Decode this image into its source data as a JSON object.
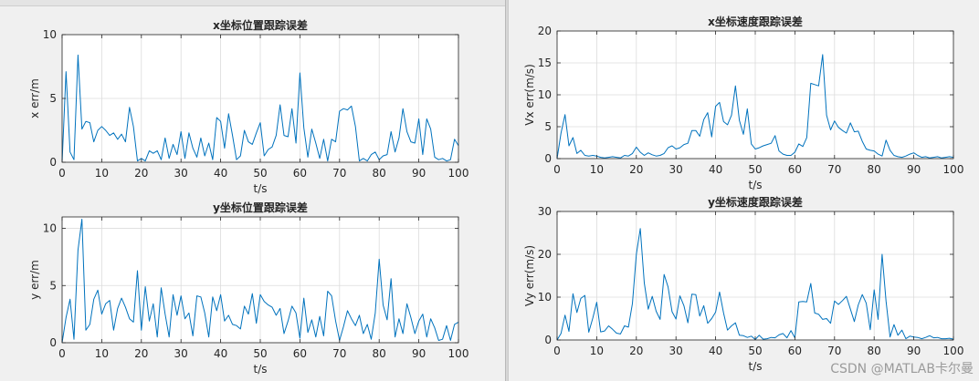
{
  "watermark": "CSDN @MATLAB卡尔曼",
  "colors": {
    "line": "#0072bd",
    "grid": "#dcdcdc",
    "axis": "#262626",
    "bg": "#ffffff"
  },
  "chart_data": [
    {
      "id": "x-pos",
      "type": "line",
      "title": "x坐标位置跟踪误差",
      "xlabel": "t/s",
      "ylabel": "x err/m",
      "xlim": [
        0,
        100
      ],
      "ylim": [
        0,
        10
      ],
      "xticks": [
        0,
        10,
        20,
        30,
        40,
        50,
        60,
        70,
        80,
        90,
        100
      ],
      "yticks": [
        0,
        5,
        10
      ],
      "grid": true,
      "y": [
        0,
        7.1,
        0.8,
        0.2,
        8.4,
        2.6,
        3.2,
        3.1,
        1.6,
        2.5,
        2.8,
        2.5,
        2.1,
        2.3,
        1.8,
        2.2,
        1.6,
        4.3,
        2.8,
        0.1,
        0.3,
        0.1,
        0.9,
        0.7,
        0.9,
        0.2,
        1.9,
        0.3,
        1.4,
        0.6,
        2.4,
        0.3,
        2.3,
        1.1,
        0.4,
        1.9,
        0.5,
        1.5,
        0.2,
        3.5,
        3.2,
        1.1,
        3.8,
        2.1,
        0.2,
        0.5,
        2.5,
        1.6,
        1.4,
        2.3,
        3.1,
        0.5,
        1.0,
        1.2,
        2.1,
        4.5,
        2.1,
        2.0,
        4.2,
        1.5,
        7.0,
        2.7,
        0.4,
        2.6,
        1.5,
        0.3,
        1.8,
        0.1,
        1.8,
        1.6,
        4.0,
        4.2,
        4.1,
        4.4,
        2.8,
        0.1,
        0.3,
        0.1,
        0.6,
        0.8,
        0.2,
        0.5,
        0.6,
        2.4,
        0.8,
        1.9,
        4.2,
        2.4,
        1.6,
        1.5,
        3.4,
        0.6,
        3.4,
        2.6,
        0.4,
        0.2,
        0.3,
        0.1,
        0.2,
        1.8,
        1.3
      ]
    },
    {
      "id": "y-pos",
      "type": "line",
      "title": "y坐标位置跟踪误差",
      "xlabel": "t/s",
      "ylabel": "y err/m",
      "xlim": [
        0,
        100
      ],
      "ylim": [
        0,
        11
      ],
      "xticks": [
        0,
        10,
        20,
        30,
        40,
        50,
        60,
        70,
        80,
        90,
        100
      ],
      "yticks": [
        0,
        5,
        10
      ],
      "grid": true,
      "y": [
        0,
        2.2,
        3.8,
        0.3,
        8.1,
        10.8,
        1.1,
        1.6,
        3.8,
        4.6,
        2.5,
        3.4,
        3.7,
        1.1,
        3.0,
        3.9,
        3.1,
        2.1,
        1.8,
        6.3,
        1.1,
        4.9,
        1.9,
        3.4,
        0.5,
        4.8,
        2.5,
        0.5,
        4.2,
        2.4,
        4.1,
        2.1,
        2.6,
        0.6,
        4.1,
        4.0,
        2.6,
        0.5,
        4.0,
        2.8,
        4.2,
        1.9,
        2.4,
        1.6,
        1.5,
        1.2,
        3.2,
        2.5,
        4.3,
        1.7,
        4.2,
        3.6,
        3.3,
        3.1,
        2.4,
        3.0,
        0.8,
        1.9,
        3.2,
        2.6,
        0.4,
        3.9,
        0.9,
        2.0,
        0.5,
        2.3,
        0.6,
        4.5,
        4.1,
        1.9,
        0.2,
        1.4,
        2.8,
        2.1,
        1.5,
        2.4,
        0.8,
        1.6,
        0.3,
        2.6,
        7.3,
        3.3,
        2.0,
        5.6,
        0.5,
        2.1,
        0.8,
        3.4,
        2.2,
        0.8,
        1.9,
        2.5,
        0.5,
        2.1,
        1.3,
        0.2,
        0.3,
        1.5,
        0.2,
        1.6,
        1.8
      ]
    },
    {
      "id": "x-vel",
      "type": "line",
      "title": "x坐标速度跟踪误差",
      "xlabel": "t/s",
      "ylabel": "Vx err(m/s)",
      "xlim": [
        0,
        100
      ],
      "ylim": [
        0,
        20
      ],
      "xticks": [
        0,
        10,
        20,
        30,
        40,
        50,
        60,
        70,
        80,
        90,
        100
      ],
      "yticks": [
        0,
        5,
        10,
        15,
        20
      ],
      "grid": true,
      "y": [
        0,
        4.0,
        6.9,
        2.0,
        3.3,
        0.8,
        1.3,
        0.5,
        0.4,
        0.5,
        0.4,
        0.2,
        0.1,
        0.2,
        0.3,
        0.2,
        0.1,
        0.5,
        0.4,
        0.8,
        1.8,
        1.0,
        0.5,
        0.9,
        0.6,
        0.4,
        0.5,
        0.8,
        1.7,
        2.0,
        1.5,
        1.7,
        2.2,
        2.4,
        4.4,
        4.4,
        3.5,
        6.1,
        7.2,
        3.4,
        8.2,
        8.8,
        5.8,
        5.3,
        6.8,
        11.4,
        6.0,
        3.8,
        7.8,
        2.3,
        1.5,
        1.7,
        2.0,
        2.2,
        2.4,
        3.6,
        1.2,
        0.7,
        0.5,
        0.5,
        1.0,
        2.3,
        1.9,
        3.3,
        11.8,
        11.6,
        11.4,
        16.3,
        6.8,
        4.5,
        5.9,
        4.9,
        4.4,
        4.0,
        5.6,
        4.2,
        4.3,
        2.7,
        1.5,
        1.3,
        1.2,
        0.7,
        0.4,
        2.9,
        1.3,
        0.5,
        0.3,
        0.2,
        0.4,
        0.7,
        0.9,
        0.5,
        0.2,
        0.3,
        0.1,
        0.2,
        0.3,
        0.1,
        0.2,
        0.3,
        0.2
      ]
    },
    {
      "id": "y-vel",
      "type": "line",
      "title": "y坐标速度跟踪误差",
      "xlabel": "t/s",
      "ylabel": "Vy err(m/s)",
      "xlim": [
        0,
        100
      ],
      "ylim": [
        0,
        30
      ],
      "xticks": [
        0,
        10,
        20,
        30,
        40,
        50,
        60,
        70,
        80,
        90,
        100
      ],
      "yticks": [
        0,
        10,
        20,
        30
      ],
      "grid": true,
      "y": [
        0,
        1.5,
        5.8,
        2.0,
        10.8,
        6.4,
        9.7,
        10.4,
        1.8,
        5.1,
        8.8,
        1.9,
        2.1,
        3.3,
        2.5,
        1.6,
        1.4,
        3.3,
        3.0,
        8.5,
        20.0,
        26.0,
        13.3,
        7.2,
        10.2,
        6.7,
        4.8,
        15.3,
        12.4,
        6.6,
        4.9,
        10.3,
        8.0,
        4.0,
        10.7,
        10.6,
        5.6,
        8.0,
        3.9,
        5.0,
        6.5,
        11.2,
        6.3,
        2.3,
        3.3,
        4.0,
        1.1,
        1.0,
        0.6,
        0.9,
        0.1,
        1.1,
        0.2,
        0.3,
        0.6,
        0.5,
        1.2,
        1.5,
        0.5,
        2.2,
        0.5,
        8.9,
        9.0,
        8.9,
        13.2,
        6.3,
        6.0,
        4.8,
        5.0,
        3.9,
        9.1,
        8.3,
        9.2,
        10.2,
        7.2,
        4.3,
        8.2,
        10.6,
        8.6,
        2.4,
        11.7,
        4.8,
        20.0,
        9.1,
        0.7,
        3.6,
        1.1,
        2.3,
        0.3,
        0.9,
        0.7,
        0.6,
        0.3,
        0.6,
        1.0,
        0.5,
        0.6,
        0.3,
        0.3,
        0.4,
        0.2
      ]
    }
  ]
}
